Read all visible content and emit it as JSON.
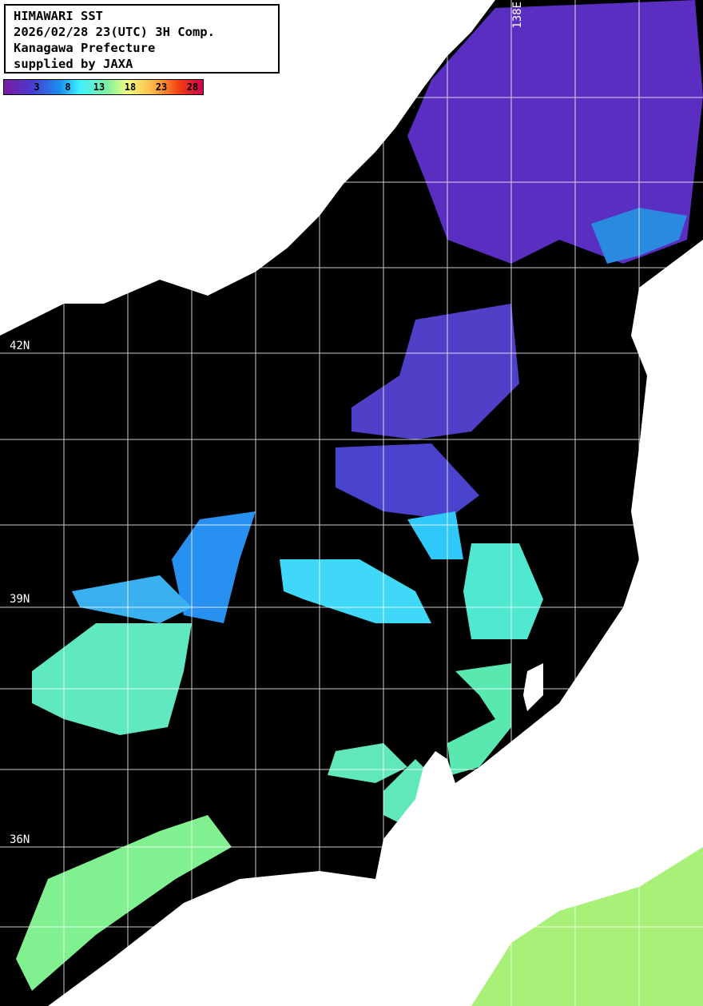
{
  "header": {
    "lines": [
      "HIMAWARI SST",
      "2026/02/28 23(UTC) 3H Comp.",
      "Kanagawa Prefecture",
      "supplied by JAXA"
    ]
  },
  "colorbar": {
    "ticks": [
      "3",
      "8",
      "13",
      "18",
      "23",
      "28"
    ],
    "colors": [
      "#7a1aa0",
      "#4a3ad0",
      "#1a8ff0",
      "#3ff0ff",
      "#7ff0a0",
      "#f0ff80",
      "#ffb040",
      "#f04010",
      "#d00050"
    ]
  },
  "grid": {
    "lat_labels": [
      "42N",
      "39N",
      "36N"
    ],
    "lon_labels": [
      "138E"
    ]
  },
  "colors": {
    "land": "#ffffff",
    "no_data": "#000000",
    "grid": "#ffffff"
  }
}
